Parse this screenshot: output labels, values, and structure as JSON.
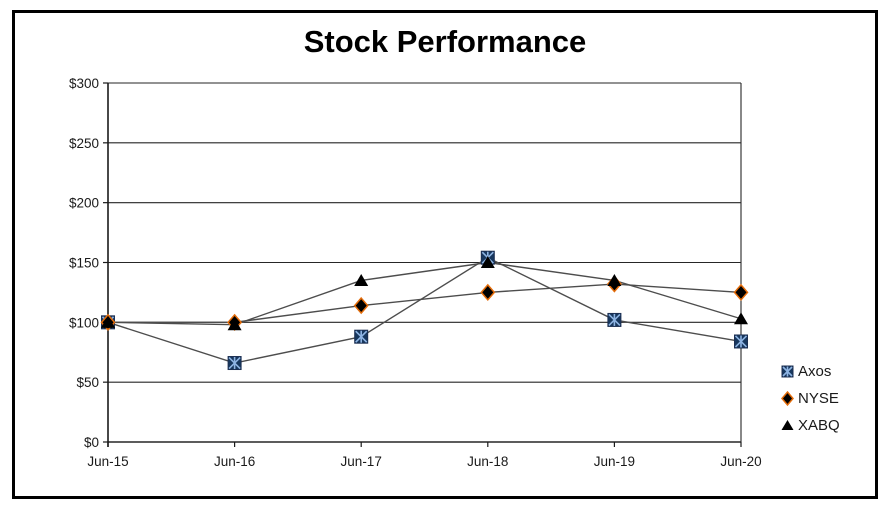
{
  "window": {
    "background": "#ffffff",
    "frame_border_color": "#000000"
  },
  "chart_data": {
    "type": "line",
    "title": "Stock Performance",
    "categories": [
      "Jun-15",
      "Jun-16",
      "Jun-17",
      "Jun-18",
      "Jun-19",
      "Jun-20"
    ],
    "series": [
      {
        "name": "Axos",
        "marker": "square-star",
        "marker_fill": "#17375E",
        "marker_accent": "#8EB4E3",
        "line_color": "#4D4D4D",
        "values": [
          100,
          66,
          88,
          154,
          102,
          84
        ]
      },
      {
        "name": "NYSE",
        "marker": "diamond",
        "marker_fill": "#000000",
        "marker_accent": "#E46C0A",
        "line_color": "#4D4D4D",
        "values": [
          100,
          100,
          114,
          125,
          132,
          125
        ]
      },
      {
        "name": "XABQ",
        "marker": "triangle",
        "marker_fill": "#000000",
        "marker_accent": "#000000",
        "line_color": "#4D4D4D",
        "values": [
          100,
          98,
          135,
          150,
          135,
          103
        ]
      }
    ],
    "y_axis": {
      "min": 0,
      "max": 300,
      "step": 50,
      "tick_labels": [
        "$300",
        "$250",
        "$200",
        "$150",
        "$100",
        "$50",
        "$0"
      ]
    },
    "x_axis": {
      "tick_labels": [
        "Jun-15",
        "Jun-16",
        "Jun-17",
        "Jun-18",
        "Jun-19",
        "Jun-20"
      ]
    },
    "legend": {
      "position": "right",
      "entries": [
        "Axos",
        "NYSE",
        "XABQ"
      ]
    },
    "grid": true,
    "axis_color": "#1a1a1a",
    "grid_color": "#262626",
    "label_color": "#1a1a1a"
  }
}
